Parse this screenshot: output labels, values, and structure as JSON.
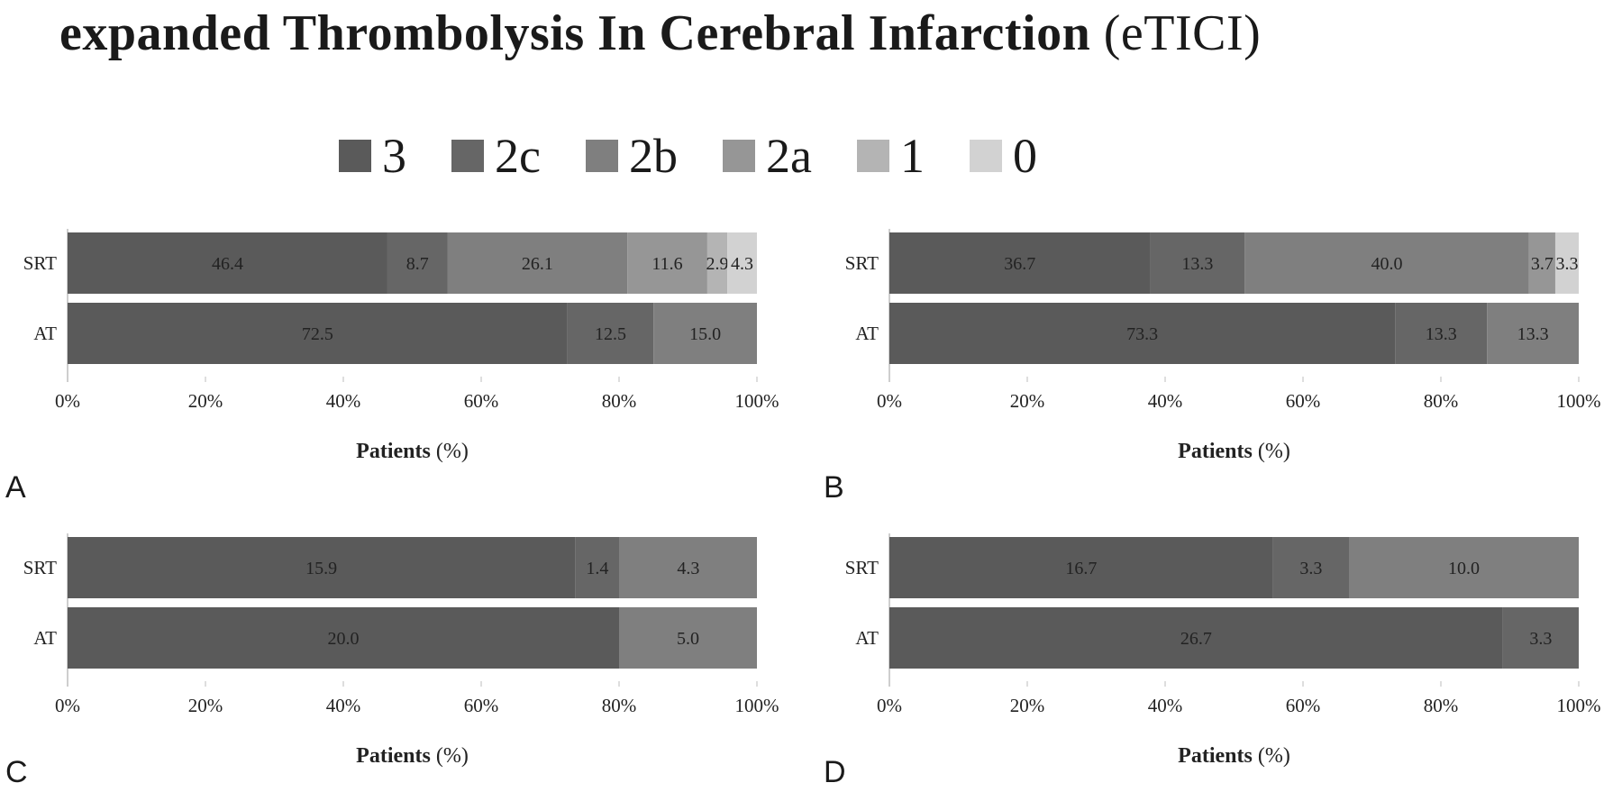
{
  "title": "expanded Thrombolysis In Cerebral Infarction",
  "title_suffix": "(eTICI)",
  "legend": [
    {
      "label": "3",
      "color": "#5a5a5a"
    },
    {
      "label": "2c",
      "color": "#666666"
    },
    {
      "label": "2b",
      "color": "#7f7f7f"
    },
    {
      "label": "2a",
      "color": "#969696"
    },
    {
      "label": "1",
      "color": "#b4b4b4"
    },
    {
      "label": "0",
      "color": "#d2d2d2"
    }
  ],
  "chart_data": [
    {
      "type": "bar",
      "orientation": "horizontal",
      "stacked": true,
      "panel": "A",
      "categories": [
        "SRT",
        "AT"
      ],
      "series": [
        {
          "name": "3",
          "values": [
            46.4,
            72.5
          ]
        },
        {
          "name": "2c",
          "values": [
            8.7,
            12.5
          ]
        },
        {
          "name": "2b",
          "values": [
            26.1,
            15.0
          ]
        },
        {
          "name": "2a",
          "values": [
            11.6,
            null
          ]
        },
        {
          "name": "1",
          "values": [
            2.9,
            null
          ]
        },
        {
          "name": "0",
          "values": [
            4.3,
            null
          ]
        }
      ],
      "xlabel": "Patients",
      "xlabel_unit": "(%)",
      "xticks": [
        "0%",
        "20%",
        "40%",
        "60%",
        "80%",
        "100%"
      ],
      "xlim": [
        0,
        100
      ]
    },
    {
      "type": "bar",
      "orientation": "horizontal",
      "stacked": true,
      "panel": "B",
      "categories": [
        "SRT",
        "AT"
      ],
      "series": [
        {
          "name": "3",
          "values": [
            36.7,
            73.3
          ]
        },
        {
          "name": "2c",
          "values": [
            13.3,
            13.3
          ]
        },
        {
          "name": "2b",
          "values": [
            40.0,
            13.3
          ]
        },
        {
          "name": "2a",
          "values": [
            3.7,
            null
          ]
        },
        {
          "name": "0",
          "values": [
            3.3,
            null
          ]
        }
      ],
      "xlabel": "Patients",
      "xlabel_unit": "(%)",
      "xticks": [
        "0%",
        "20%",
        "40%",
        "60%",
        "80%",
        "100%"
      ],
      "xlim": [
        0,
        100
      ]
    },
    {
      "type": "bar",
      "orientation": "horizontal",
      "stacked": true,
      "panel": "C",
      "categories": [
        "SRT",
        "AT"
      ],
      "series": [
        {
          "name": "3",
          "values": [
            15.9,
            20.0
          ]
        },
        {
          "name": "2c",
          "values": [
            1.4,
            null
          ]
        },
        {
          "name": "2b",
          "values": [
            4.3,
            5.0
          ]
        }
      ],
      "xlabel": "Patients",
      "xlabel_unit": "(%)",
      "xticks": [
        "0%",
        "20%",
        "40%",
        "60%",
        "80%",
        "100%"
      ],
      "xlim": [
        0,
        100
      ]
    },
    {
      "type": "bar",
      "orientation": "horizontal",
      "stacked": true,
      "panel": "D",
      "categories": [
        "SRT",
        "AT"
      ],
      "series": [
        {
          "name": "3",
          "values": [
            16.7,
            26.7
          ]
        },
        {
          "name": "2c",
          "values": [
            3.3,
            3.3
          ]
        },
        {
          "name": "2b",
          "values": [
            10.0,
            null
          ]
        }
      ],
      "xlabel": "Patients",
      "xlabel_unit": "(%)",
      "xticks": [
        "0%",
        "20%",
        "40%",
        "60%",
        "80%",
        "100%"
      ],
      "xlim": [
        0,
        100
      ]
    }
  ]
}
